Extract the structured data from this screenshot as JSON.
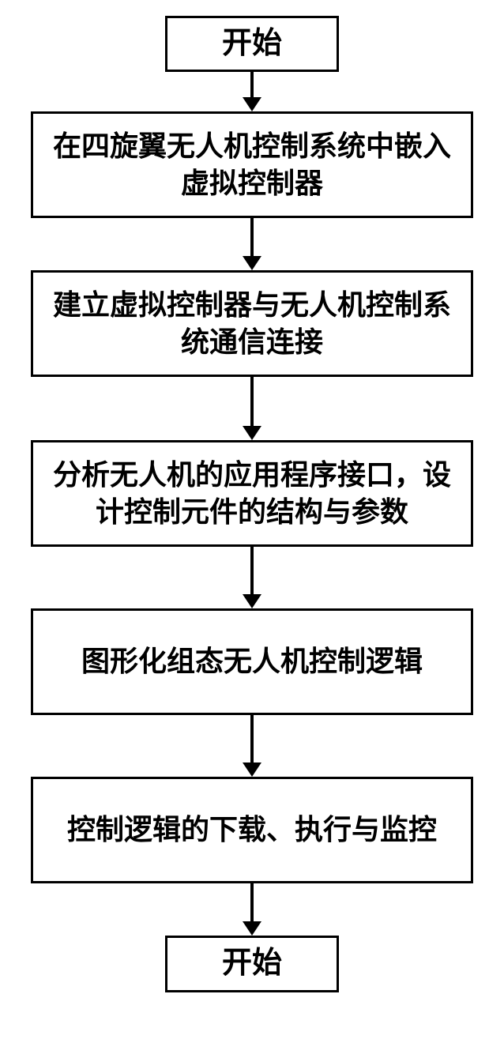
{
  "flowchart": {
    "background_color": "#ffffff",
    "border_color": "#000000",
    "border_width": 3,
    "text_color": "#000000",
    "font_weight": "bold",
    "terminal_fontsize": 38,
    "process_fontsize": 36,
    "terminal_width": 220,
    "process_width": 560,
    "arrow_color": "#000000",
    "nodes": [
      {
        "id": "start",
        "type": "terminal",
        "label": "开始"
      },
      {
        "id": "step1",
        "type": "process",
        "label": "在四旋翼无人机控制系统中嵌入虚拟控制器"
      },
      {
        "id": "step2",
        "type": "process",
        "label": "建立虚拟控制器与无人机控制系统通信连接"
      },
      {
        "id": "step3",
        "type": "process",
        "label": "分析无人机的应用程序接口，设计控制元件的结构与参数"
      },
      {
        "id": "step4",
        "type": "process",
        "label": "图形化组态无人机控制逻辑"
      },
      {
        "id": "step5",
        "type": "process",
        "label": "控制逻辑的下载、执行与监控"
      },
      {
        "id": "end",
        "type": "terminal",
        "label": "开始"
      }
    ],
    "arrows": [
      {
        "from": "start",
        "to": "step1",
        "length": 32
      },
      {
        "from": "step1",
        "to": "step2",
        "length": 48
      },
      {
        "from": "step2",
        "to": "step3",
        "length": 62
      },
      {
        "from": "step3",
        "to": "step4",
        "length": 60
      },
      {
        "from": "step4",
        "to": "step5",
        "length": 60
      },
      {
        "from": "step5",
        "to": "end",
        "length": 48
      }
    ]
  }
}
